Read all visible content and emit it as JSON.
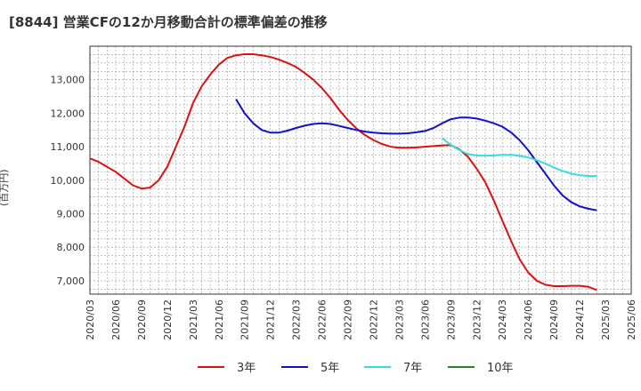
{
  "chart_data": {
    "type": "line",
    "title": "[8844]  営業CFの12か月移動合計の標準偏差の推移",
    "ylabel": "(百万円)",
    "xlabel": "",
    "x_ticks": [
      "2020/03",
      "2020/06",
      "2020/09",
      "2020/12",
      "2021/03",
      "2021/06",
      "2021/09",
      "2021/12",
      "2022/03",
      "2022/06",
      "2022/09",
      "2022/12",
      "2023/03",
      "2023/06",
      "2023/09",
      "2023/12",
      "2024/03",
      "2024/06",
      "2024/09",
      "2024/12",
      "2025/03",
      "2025/06"
    ],
    "y_ticks": [
      "7,000",
      "8,000",
      "9,000",
      "10,000",
      "11,000",
      "12,000",
      "13,000"
    ],
    "ylim": [
      6600,
      14000
    ],
    "grid": true,
    "legend_position": "bottom",
    "series": [
      {
        "name": "3年",
        "color": "#dd1111",
        "data": [
          [
            "2020/03",
            10650
          ],
          [
            "2020/04",
            10550
          ],
          [
            "2020/05",
            10400
          ],
          [
            "2020/06",
            10250
          ],
          [
            "2020/07",
            10050
          ],
          [
            "2020/08",
            9850
          ],
          [
            "2020/09",
            9750
          ],
          [
            "2020/10",
            9780
          ],
          [
            "2020/11",
            10000
          ],
          [
            "2020/12",
            10400
          ],
          [
            "2021/01",
            11000
          ],
          [
            "2021/02",
            11600
          ],
          [
            "2021/03",
            12300
          ],
          [
            "2021/04",
            12800
          ],
          [
            "2021/05",
            13150
          ],
          [
            "2021/06",
            13450
          ],
          [
            "2021/07",
            13650
          ],
          [
            "2021/08",
            13730
          ],
          [
            "2021/09",
            13760
          ],
          [
            "2021/10",
            13760
          ],
          [
            "2021/11",
            13730
          ],
          [
            "2021/12",
            13680
          ],
          [
            "2022/01",
            13600
          ],
          [
            "2022/02",
            13500
          ],
          [
            "2022/03",
            13380
          ],
          [
            "2022/04",
            13200
          ],
          [
            "2022/05",
            13000
          ],
          [
            "2022/06",
            12750
          ],
          [
            "2022/07",
            12450
          ],
          [
            "2022/08",
            12100
          ],
          [
            "2022/09",
            11800
          ],
          [
            "2022/10",
            11550
          ],
          [
            "2022/11",
            11350
          ],
          [
            "2022/12",
            11200
          ],
          [
            "2023/01",
            11080
          ],
          [
            "2023/02",
            11000
          ],
          [
            "2023/03",
            10970
          ],
          [
            "2023/04",
            10970
          ],
          [
            "2023/05",
            10980
          ],
          [
            "2023/06",
            11000
          ],
          [
            "2023/07",
            11020
          ],
          [
            "2023/08",
            11040
          ],
          [
            "2023/09",
            11050
          ],
          [
            "2023/10",
            10920
          ],
          [
            "2023/11",
            10700
          ],
          [
            "2023/12",
            10350
          ],
          [
            "2024/01",
            9950
          ],
          [
            "2024/02",
            9400
          ],
          [
            "2024/03",
            8800
          ],
          [
            "2024/04",
            8200
          ],
          [
            "2024/05",
            7650
          ],
          [
            "2024/06",
            7250
          ],
          [
            "2024/07",
            7000
          ],
          [
            "2024/08",
            6880
          ],
          [
            "2024/09",
            6840
          ],
          [
            "2024/10",
            6840
          ],
          [
            "2024/11",
            6850
          ],
          [
            "2024/12",
            6850
          ],
          [
            "2025/01",
            6820
          ],
          [
            "2025/02",
            6720
          ]
        ]
      },
      {
        "name": "5年",
        "color": "#1111cc",
        "data": [
          [
            "2021/08",
            12420
          ],
          [
            "2021/09",
            12000
          ],
          [
            "2021/10",
            11700
          ],
          [
            "2021/11",
            11500
          ],
          [
            "2021/12",
            11420
          ],
          [
            "2022/01",
            11420
          ],
          [
            "2022/02",
            11480
          ],
          [
            "2022/03",
            11560
          ],
          [
            "2022/04",
            11630
          ],
          [
            "2022/05",
            11680
          ],
          [
            "2022/06",
            11700
          ],
          [
            "2022/07",
            11680
          ],
          [
            "2022/08",
            11620
          ],
          [
            "2022/09",
            11560
          ],
          [
            "2022/10",
            11500
          ],
          [
            "2022/11",
            11450
          ],
          [
            "2022/12",
            11420
          ],
          [
            "2023/01",
            11400
          ],
          [
            "2023/02",
            11390
          ],
          [
            "2023/03",
            11390
          ],
          [
            "2023/04",
            11400
          ],
          [
            "2023/05",
            11430
          ],
          [
            "2023/06",
            11470
          ],
          [
            "2023/07",
            11560
          ],
          [
            "2023/08",
            11700
          ],
          [
            "2023/09",
            11820
          ],
          [
            "2023/10",
            11870
          ],
          [
            "2023/11",
            11870
          ],
          [
            "2023/12",
            11840
          ],
          [
            "2024/01",
            11780
          ],
          [
            "2024/02",
            11700
          ],
          [
            "2024/03",
            11600
          ],
          [
            "2024/04",
            11430
          ],
          [
            "2024/05",
            11200
          ],
          [
            "2024/06",
            10900
          ],
          [
            "2024/07",
            10550
          ],
          [
            "2024/08",
            10200
          ],
          [
            "2024/09",
            9850
          ],
          [
            "2024/10",
            9550
          ],
          [
            "2024/11",
            9350
          ],
          [
            "2024/12",
            9220
          ],
          [
            "2025/01",
            9150
          ],
          [
            "2025/02",
            9100
          ]
        ]
      },
      {
        "name": "7年",
        "color": "#33dddd",
        "data": [
          [
            "2023/08",
            11260
          ],
          [
            "2023/09",
            11050
          ],
          [
            "2023/10",
            10900
          ],
          [
            "2023/11",
            10780
          ],
          [
            "2023/12",
            10740
          ],
          [
            "2024/01",
            10730
          ],
          [
            "2024/02",
            10740
          ],
          [
            "2024/03",
            10760
          ],
          [
            "2024/04",
            10760
          ],
          [
            "2024/05",
            10730
          ],
          [
            "2024/06",
            10680
          ],
          [
            "2024/07",
            10600
          ],
          [
            "2024/08",
            10500
          ],
          [
            "2024/09",
            10380
          ],
          [
            "2024/10",
            10280
          ],
          [
            "2024/11",
            10200
          ],
          [
            "2024/12",
            10150
          ],
          [
            "2025/01",
            10130
          ],
          [
            "2025/02",
            10120
          ]
        ]
      },
      {
        "name": "10年",
        "color": "#228822",
        "data": []
      }
    ]
  }
}
